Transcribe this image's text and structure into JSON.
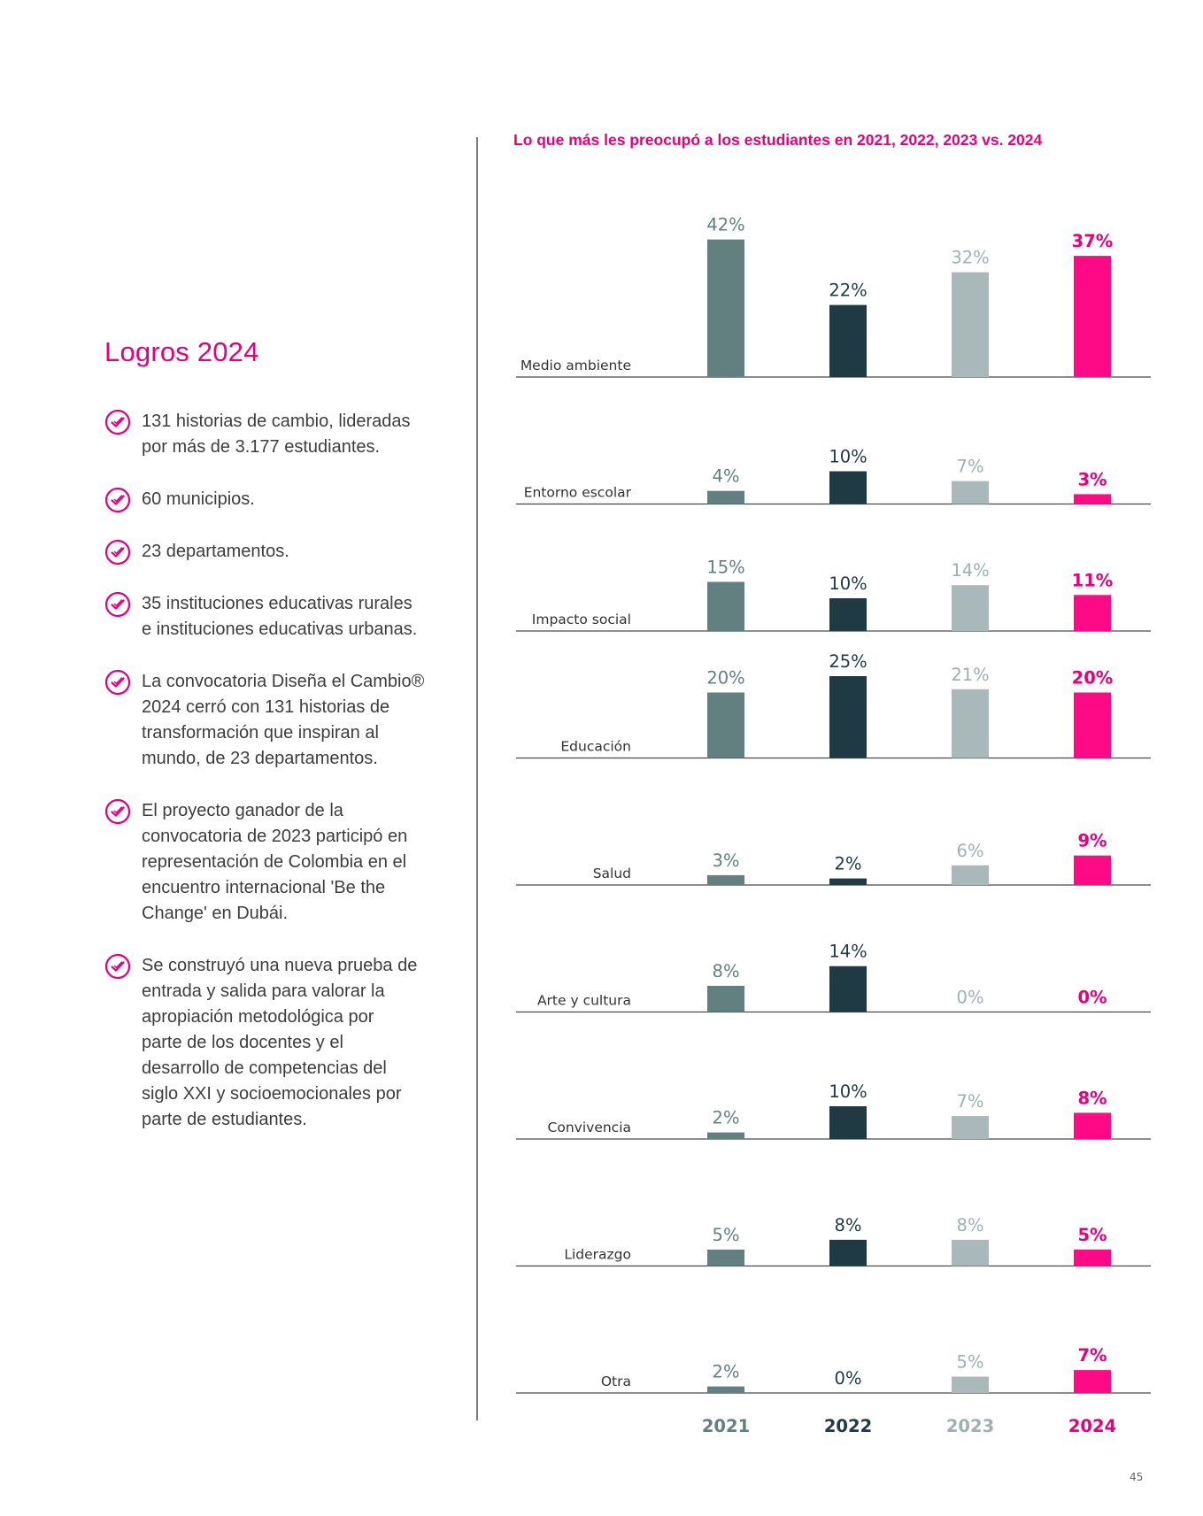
{
  "left": {
    "title": "Logros 2024",
    "achievements": [
      "131 historias de cambio, lideradas\npor más de 3.177 estudiantes.",
      "60 municipios.",
      "23 departamentos.",
      "35 instituciones educativas rurales\ne instituciones educativas urbanas.",
      "La convocatoria Diseña el Cambio®\n2024 cerró con 131 historias de\ntransformación que inspiran al\nmundo, de 23 departamentos.",
      "El proyecto ganador de la\nconvocatoria de 2023 participó en\nrepresentación de Colombia en el\nencuentro internacional 'Be the\nChange' en Dubái.",
      "Se construyó una nueva prueba de\nentrada y salida para valorar la\napropiación metodológica por\nparte de los docentes y el\ndesarrollo de competencias del\nsiglo XXI y socioemocionales por\nparte de estudiantes."
    ],
    "icon": "check-circle-icon",
    "accent": "#e6007e"
  },
  "page_number": "45",
  "chart_data": {
    "type": "bar",
    "title": "Lo que más les preocupó a los estudiantes en 2021, 2022, 2023 vs. 2024",
    "categories": [
      "Medio ambiente",
      "Entorno escolar",
      "Impacto social",
      "Educación",
      "Salud",
      "Arte y cultura",
      "Convivencia",
      "Liderazgo",
      "Otra"
    ],
    "series": [
      {
        "name": "2021",
        "color": "#62807f",
        "values": [
          42,
          4,
          15,
          20,
          3,
          8,
          2,
          5,
          2
        ]
      },
      {
        "name": "2022",
        "color": "#1f3a42",
        "values": [
          22,
          10,
          10,
          25,
          2,
          14,
          10,
          8,
          0
        ]
      },
      {
        "name": "2023",
        "color": "#a9b8b9",
        "values": [
          32,
          7,
          14,
          21,
          6,
          0,
          7,
          8,
          5
        ]
      },
      {
        "name": "2024",
        "color": "#ff0a86",
        "values": [
          37,
          3,
          11,
          20,
          9,
          0,
          8,
          5,
          7
        ]
      }
    ],
    "value_suffix": "%",
    "legend": "bottom",
    "grid": false
  }
}
